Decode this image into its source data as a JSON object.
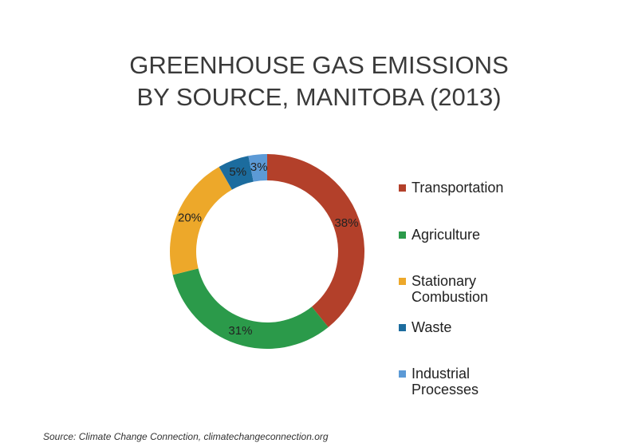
{
  "chart_data": {
    "type": "donut",
    "title": [
      "GREENHOUSE GAS EMISSIONS",
      "BY SOURCE, MANITOBA (2013)"
    ],
    "categories": [
      "Transportation",
      "Agriculture",
      "Stationary Combustion",
      "Waste",
      "Industrial Processes"
    ],
    "values": [
      38,
      31,
      20,
      5,
      3
    ],
    "value_labels": [
      "38%",
      "31%",
      "20%",
      "5%",
      "3%"
    ],
    "colors": [
      "#b3402a",
      "#2b9a4a",
      "#eda82a",
      "#1c6c9e",
      "#5c9ad6"
    ],
    "legend": "right",
    "source": "Source: Climate Change Connection, climatechangeconnection.org"
  }
}
